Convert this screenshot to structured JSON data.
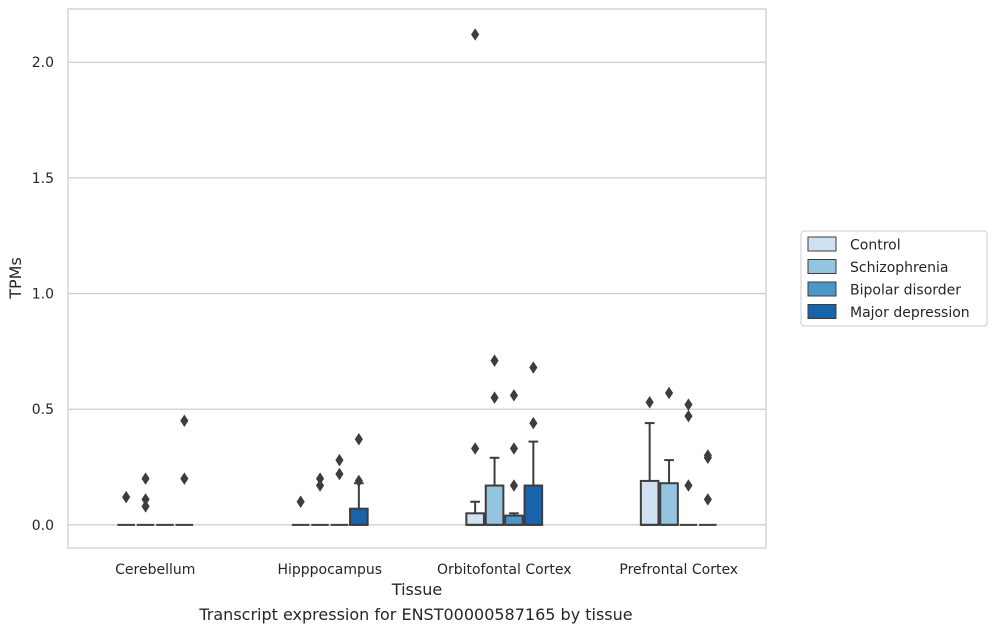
{
  "caption": "Transcript expression for ENST00000587165 by tissue",
  "chart_data": {
    "type": "box",
    "xlabel": "Tissue",
    "ylabel": "TPMs",
    "ylim": [
      -0.1,
      2.23
    ],
    "yticks": [
      0.0,
      0.5,
      1.0,
      1.5,
      2.0
    ],
    "ytick_labels": [
      "0.0",
      "0.5",
      "1.0",
      "1.5",
      "2.0"
    ],
    "grid": "horizontal",
    "legend_position": "right",
    "categories": [
      "Cerebellum",
      "Hipppocampus",
      "Orbitofontal Cortex",
      "Prefrontal Cortex"
    ],
    "series": [
      {
        "name": "Control",
        "color": "#d0e1f2",
        "boxes": [
          {
            "q1": 0,
            "median": 0,
            "q3": 0,
            "whisker_low": 0,
            "whisker_high": 0,
            "outliers": [
              0.12
            ]
          },
          {
            "q1": 0,
            "median": 0,
            "q3": 0,
            "whisker_low": 0,
            "whisker_high": 0,
            "outliers": [
              0.1
            ]
          },
          {
            "q1": 0,
            "median": 0,
            "q3": 0.05,
            "whisker_low": 0,
            "whisker_high": 0.1,
            "outliers": [
              0.33,
              2.12
            ]
          },
          {
            "q1": 0,
            "median": 0,
            "q3": 0.19,
            "whisker_low": 0,
            "whisker_high": 0.44,
            "outliers": [
              0.53
            ]
          }
        ]
      },
      {
        "name": "Schizophrenia",
        "color": "#94c4df",
        "boxes": [
          {
            "q1": 0,
            "median": 0,
            "q3": 0,
            "whisker_low": 0,
            "whisker_high": 0,
            "outliers": [
              0.08,
              0.11,
              0.2
            ]
          },
          {
            "q1": 0,
            "median": 0,
            "q3": 0,
            "whisker_low": 0,
            "whisker_high": 0,
            "outliers": [
              0.17,
              0.2
            ]
          },
          {
            "q1": 0,
            "median": 0,
            "q3": 0.17,
            "whisker_low": 0,
            "whisker_high": 0.29,
            "outliers": [
              0.55,
              0.71
            ]
          },
          {
            "q1": 0,
            "median": 0,
            "q3": 0.18,
            "whisker_low": 0,
            "whisker_high": 0.28,
            "outliers": [
              0.57
            ]
          }
        ]
      },
      {
        "name": "Bipolar disorder",
        "color": "#4a98c9",
        "boxes": [
          {
            "q1": 0,
            "median": 0,
            "q3": 0,
            "whisker_low": 0,
            "whisker_high": 0,
            "outliers": []
          },
          {
            "q1": 0,
            "median": 0,
            "q3": 0,
            "whisker_low": 0,
            "whisker_high": 0,
            "outliers": [
              0.22,
              0.28
            ]
          },
          {
            "q1": 0,
            "median": 0,
            "q3": 0.04,
            "whisker_low": 0,
            "whisker_high": 0.05,
            "outliers": [
              0.17,
              0.33,
              0.56
            ]
          },
          {
            "q1": 0,
            "median": 0,
            "q3": 0,
            "whisker_low": 0,
            "whisker_high": 0,
            "outliers": [
              0.17,
              0.47,
              0.52
            ]
          }
        ]
      },
      {
        "name": "Major depression",
        "color": "#1764ab",
        "boxes": [
          {
            "q1": 0,
            "median": 0,
            "q3": 0,
            "whisker_low": 0,
            "whisker_high": 0,
            "outliers": [
              0.2,
              0.45
            ]
          },
          {
            "q1": 0,
            "median": 0,
            "q3": 0.07,
            "whisker_low": 0,
            "whisker_high": 0.18,
            "outliers": [
              0.19,
              0.37
            ]
          },
          {
            "q1": 0,
            "median": 0,
            "q3": 0.17,
            "whisker_low": 0,
            "whisker_high": 0.36,
            "outliers": [
              0.44,
              0.68
            ]
          },
          {
            "q1": 0,
            "median": 0,
            "q3": 0,
            "whisker_low": 0,
            "whisker_high": 0,
            "outliers": [
              0.11,
              0.29,
              0.3
            ]
          }
        ]
      }
    ]
  }
}
